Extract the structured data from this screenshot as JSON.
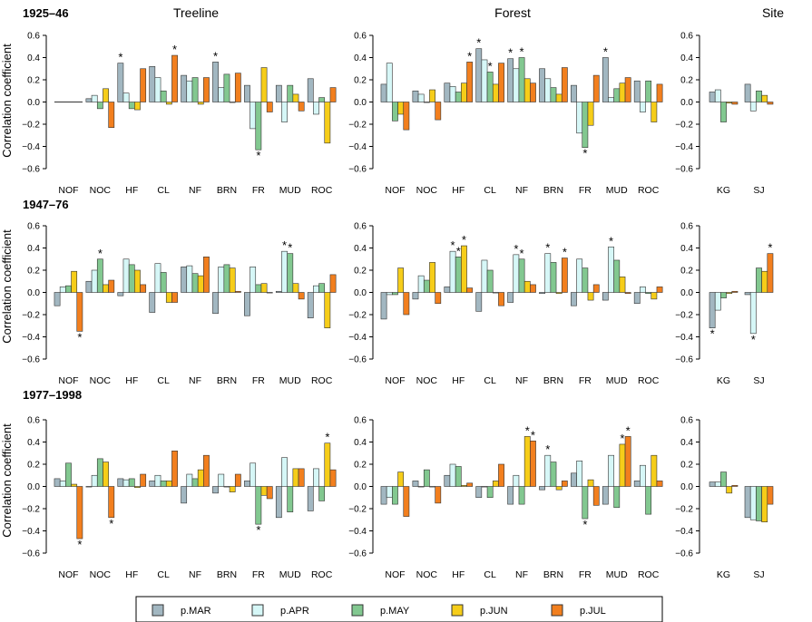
{
  "chart_data": {
    "type": "bar",
    "row_labels": [
      "1925–46",
      "1947–76",
      "1977–1998"
    ],
    "column_titles": [
      "Treeline",
      "Forest",
      "Site"
    ],
    "ylabel": "Correlation coefficient",
    "ylim": [
      -0.6,
      0.6
    ],
    "yticks": [
      "0.6",
      "0.4",
      "0.2",
      "0.0",
      "−0.2",
      "−0.4",
      "−0.6"
    ],
    "series_names": [
      "p.MAR",
      "p.APR",
      "p.MAY",
      "p.JUN",
      "p.JUL"
    ],
    "colors": [
      "#a2b7c1",
      "#d6f7f7",
      "#82c890",
      "#f6cd19",
      "#f27f1e"
    ],
    "categories_group": [
      "NOF",
      "NOC",
      "HF",
      "CL",
      "NF",
      "BRN",
      "FR",
      "MUD",
      "ROC"
    ],
    "categories_site": [
      "KG",
      "SJ"
    ],
    "panels": [
      {
        "row": 0,
        "col": 0,
        "values": [
          [
            0,
            0,
            0,
            0,
            0
          ],
          [
            0.03,
            0.06,
            -0.06,
            0.12,
            -0.23
          ],
          [
            0.35,
            0.08,
            -0.06,
            -0.07,
            0.3
          ],
          [
            0.32,
            0.22,
            0.1,
            -0.02,
            0.42
          ],
          [
            0.24,
            0.19,
            0.22,
            -0.02,
            0.22
          ],
          [
            0.36,
            0.13,
            0.25,
            0.0,
            0.26
          ],
          [
            0.15,
            -0.24,
            -0.43,
            0.31,
            -0.09
          ],
          [
            0.15,
            -0.18,
            0.15,
            0.07,
            -0.08
          ],
          [
            0.21,
            -0.11,
            0.04,
            -0.37,
            0.13
          ]
        ],
        "stars": [
          [
            2,
            0
          ],
          [
            3,
            4
          ],
          [
            5,
            0
          ],
          [
            6,
            2
          ]
        ]
      },
      {
        "row": 0,
        "col": 1,
        "values": [
          [
            0.16,
            0.35,
            -0.17,
            -0.11,
            -0.25
          ],
          [
            0.1,
            0.07,
            0.0,
            0.11,
            -0.16
          ],
          [
            0.17,
            0.14,
            0.09,
            0.17,
            0.36
          ],
          [
            0.48,
            0.38,
            0.27,
            0.16,
            0.35
          ],
          [
            0.39,
            0.3,
            0.4,
            0.21,
            0.17
          ],
          [
            0.3,
            0.21,
            0.13,
            0.07,
            0.31
          ],
          [
            0.15,
            -0.28,
            -0.41,
            -0.21,
            0.24
          ],
          [
            0.4,
            0.04,
            0.12,
            0.17,
            0.22
          ],
          [
            0.19,
            -0.09,
            0.19,
            -0.18,
            0.16
          ]
        ],
        "stars": [
          [
            2,
            4
          ],
          [
            3,
            0
          ],
          [
            3,
            2
          ],
          [
            4,
            0
          ],
          [
            4,
            2
          ],
          [
            6,
            2
          ],
          [
            7,
            0
          ]
        ]
      },
      {
        "row": 0,
        "col": 2,
        "values": [
          [
            0.09,
            0.11,
            -0.18,
            -0.01,
            -0.02
          ],
          [
            0.16,
            -0.08,
            0.1,
            0.06,
            -0.02
          ]
        ],
        "stars": []
      },
      {
        "row": 1,
        "col": 0,
        "values": [
          [
            -0.12,
            0.05,
            0.06,
            0.19,
            -0.35
          ],
          [
            0.1,
            0.2,
            0.3,
            0.07,
            0.11
          ],
          [
            -0.03,
            0.3,
            0.25,
            0.2,
            0.07
          ],
          [
            -0.18,
            0.26,
            0.18,
            -0.09,
            -0.09
          ],
          [
            0.23,
            0.24,
            0.17,
            0.15,
            0.32
          ],
          [
            -0.19,
            0.23,
            0.25,
            0.22,
            0.01
          ],
          [
            -0.21,
            0.23,
            0.07,
            0.08,
            0.0
          ],
          [
            0.01,
            0.37,
            0.35,
            0.08,
            -0.06
          ],
          [
            -0.23,
            0.06,
            0.08,
            -0.32,
            0.16
          ]
        ],
        "stars": [
          [
            0,
            4
          ],
          [
            1,
            2
          ],
          [
            7,
            1
          ],
          [
            7,
            2
          ]
        ]
      },
      {
        "row": 1,
        "col": 1,
        "values": [
          [
            -0.24,
            -0.02,
            -0.02,
            0.22,
            -0.2
          ],
          [
            -0.06,
            0.15,
            0.11,
            0.27,
            -0.1
          ],
          [
            0.05,
            0.37,
            0.32,
            0.42,
            0.04
          ],
          [
            -0.17,
            0.29,
            0.2,
            0.0,
            -0.12
          ],
          [
            -0.09,
            0.34,
            0.3,
            0.1,
            0.07
          ],
          [
            -0.01,
            0.35,
            0.27,
            -0.01,
            0.31
          ],
          [
            -0.12,
            0.3,
            0.22,
            -0.07,
            0.07
          ],
          [
            -0.07,
            0.41,
            0.29,
            0.14,
            -0.01
          ],
          [
            -0.1,
            0.05,
            -0.01,
            -0.06,
            0.05
          ]
        ],
        "stars": [
          [
            2,
            1
          ],
          [
            2,
            2
          ],
          [
            2,
            3
          ],
          [
            4,
            1
          ],
          [
            4,
            2
          ],
          [
            5,
            1
          ],
          [
            5,
            4
          ],
          [
            7,
            1
          ]
        ]
      },
      {
        "row": 1,
        "col": 2,
        "values": [
          [
            -0.32,
            -0.16,
            -0.05,
            -0.01,
            0.01
          ],
          [
            -0.02,
            -0.37,
            0.22,
            0.19,
            0.35
          ]
        ],
        "stars": [
          [
            0,
            0
          ],
          [
            1,
            1
          ],
          [
            1,
            4
          ]
        ]
      },
      {
        "row": 2,
        "col": 0,
        "values": [
          [
            0.07,
            0.05,
            0.21,
            0.02,
            -0.47
          ],
          [
            0.0,
            0.1,
            0.25,
            0.22,
            -0.28
          ],
          [
            0.07,
            0.06,
            0.07,
            -0.01,
            0.11
          ],
          [
            0.05,
            0.1,
            0.05,
            0.05,
            0.32
          ],
          [
            -0.15,
            0.11,
            0.07,
            0.15,
            0.28
          ],
          [
            -0.06,
            0.11,
            0.0,
            -0.05,
            0.11
          ],
          [
            0.05,
            0.21,
            -0.34,
            -0.08,
            -0.11
          ],
          [
            -0.28,
            0.26,
            -0.23,
            0.16,
            0.16
          ],
          [
            -0.22,
            0.16,
            -0.13,
            0.39,
            0.15
          ]
        ],
        "stars": [
          [
            0,
            4
          ],
          [
            1,
            4
          ],
          [
            6,
            2
          ],
          [
            8,
            3
          ]
        ]
      },
      {
        "row": 2,
        "col": 1,
        "values": [
          [
            -0.16,
            -0.1,
            -0.16,
            0.13,
            -0.27
          ],
          [
            0.05,
            0.0,
            0.15,
            0.0,
            -0.15
          ],
          [
            0.1,
            0.2,
            0.18,
            0.01,
            0.03
          ],
          [
            -0.1,
            0.0,
            -0.1,
            0.05,
            0.2
          ],
          [
            -0.16,
            0.1,
            -0.16,
            0.45,
            0.41
          ],
          [
            -0.03,
            0.28,
            0.22,
            -0.03,
            0.05
          ],
          [
            0.12,
            0.23,
            -0.29,
            0.06,
            -0.17
          ],
          [
            -0.16,
            0.28,
            -0.19,
            0.38,
            0.45
          ],
          [
            0.05,
            0.19,
            -0.25,
            0.28,
            0.05
          ]
        ],
        "stars": [
          [
            4,
            3
          ],
          [
            4,
            4
          ],
          [
            5,
            1
          ],
          [
            6,
            2
          ],
          [
            7,
            3
          ],
          [
            7,
            4
          ]
        ]
      },
      {
        "row": 2,
        "col": 2,
        "values": [
          [
            0.04,
            0.04,
            0.13,
            -0.06,
            0.01
          ],
          [
            -0.28,
            -0.3,
            -0.31,
            -0.32,
            -0.16
          ]
        ],
        "stars": []
      }
    ]
  },
  "legend": {
    "items": [
      "p.MAR",
      "p.APR",
      "p.MAY",
      "p.JUN",
      "p.JUL"
    ]
  }
}
